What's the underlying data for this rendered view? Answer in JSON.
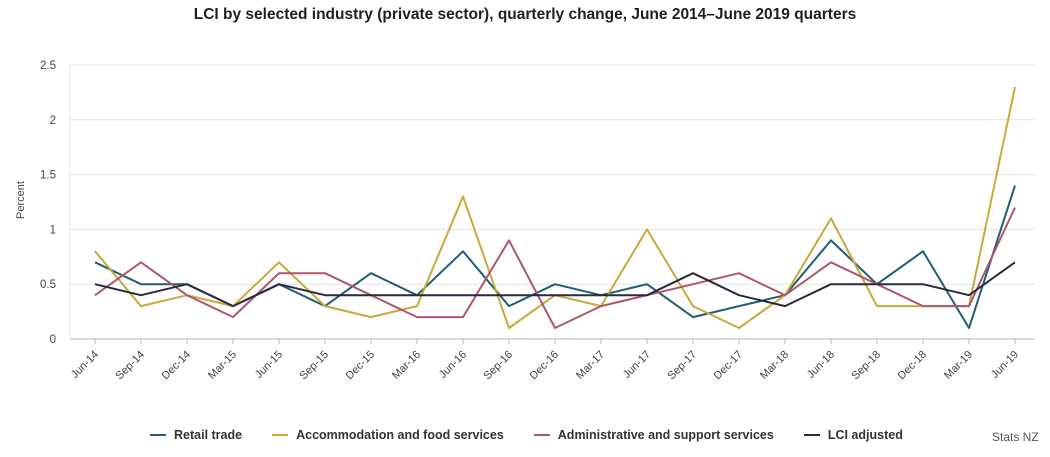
{
  "chart_data": {
    "type": "line",
    "title": "LCI by selected industry (private sector), quarterly change, June 2014–June 2019 quarters",
    "ylabel": "Percent",
    "xlabel": "",
    "ylim": [
      0,
      2.5
    ],
    "yticks": [
      0,
      0.5,
      1,
      1.5,
      2,
      2.5
    ],
    "ytick_labels": [
      "0",
      "0.5",
      "1",
      "1.5",
      "2",
      "2.5"
    ],
    "grid": true,
    "legend_position": "bottom",
    "categories": [
      "Jun-14",
      "Sep-14",
      "Dec-14",
      "Mar-15",
      "Jun-15",
      "Sep-15",
      "Dec-15",
      "Mar-16",
      "Jun-16",
      "Sep-16",
      "Dec-16",
      "Mar-17",
      "Jun-17",
      "Sep-17",
      "Dec-17",
      "Mar-18",
      "Jun-18",
      "Sep-18",
      "Dec-18",
      "Mar-19",
      "Jun-19"
    ],
    "series": [
      {
        "name": "Retail trade",
        "color": "#1f5f74",
        "values": [
          0.7,
          0.5,
          0.5,
          0.3,
          0.5,
          0.3,
          0.6,
          0.4,
          0.8,
          0.3,
          0.5,
          0.4,
          0.5,
          0.2,
          0.3,
          0.4,
          0.9,
          0.5,
          0.8,
          0.1,
          1.4
        ]
      },
      {
        "name": "Accommodation and food services",
        "color": "#c9a93a",
        "values": [
          0.8,
          0.3,
          0.4,
          0.3,
          0.7,
          0.3,
          0.2,
          0.3,
          1.3,
          0.1,
          0.4,
          0.3,
          1.0,
          0.3,
          0.1,
          0.4,
          1.1,
          0.3,
          0.3,
          0.3,
          2.3
        ]
      },
      {
        "name": "Administrative and support services",
        "color": "#b0566a",
        "values": [
          0.4,
          0.7,
          0.4,
          0.2,
          0.6,
          0.6,
          0.4,
          0.2,
          0.2,
          0.9,
          0.1,
          0.3,
          0.4,
          0.5,
          0.6,
          0.4,
          0.7,
          0.5,
          0.3,
          0.3,
          1.2
        ]
      },
      {
        "name": "LCI adjusted",
        "color": "#2a2a3e",
        "values": [
          0.5,
          0.4,
          0.5,
          0.3,
          0.5,
          0.4,
          0.4,
          0.4,
          0.4,
          0.4,
          0.4,
          0.4,
          0.4,
          0.6,
          0.4,
          0.3,
          0.5,
          0.5,
          0.5,
          0.4,
          0.7
        ]
      }
    ]
  },
  "source_credit": "Stats NZ"
}
